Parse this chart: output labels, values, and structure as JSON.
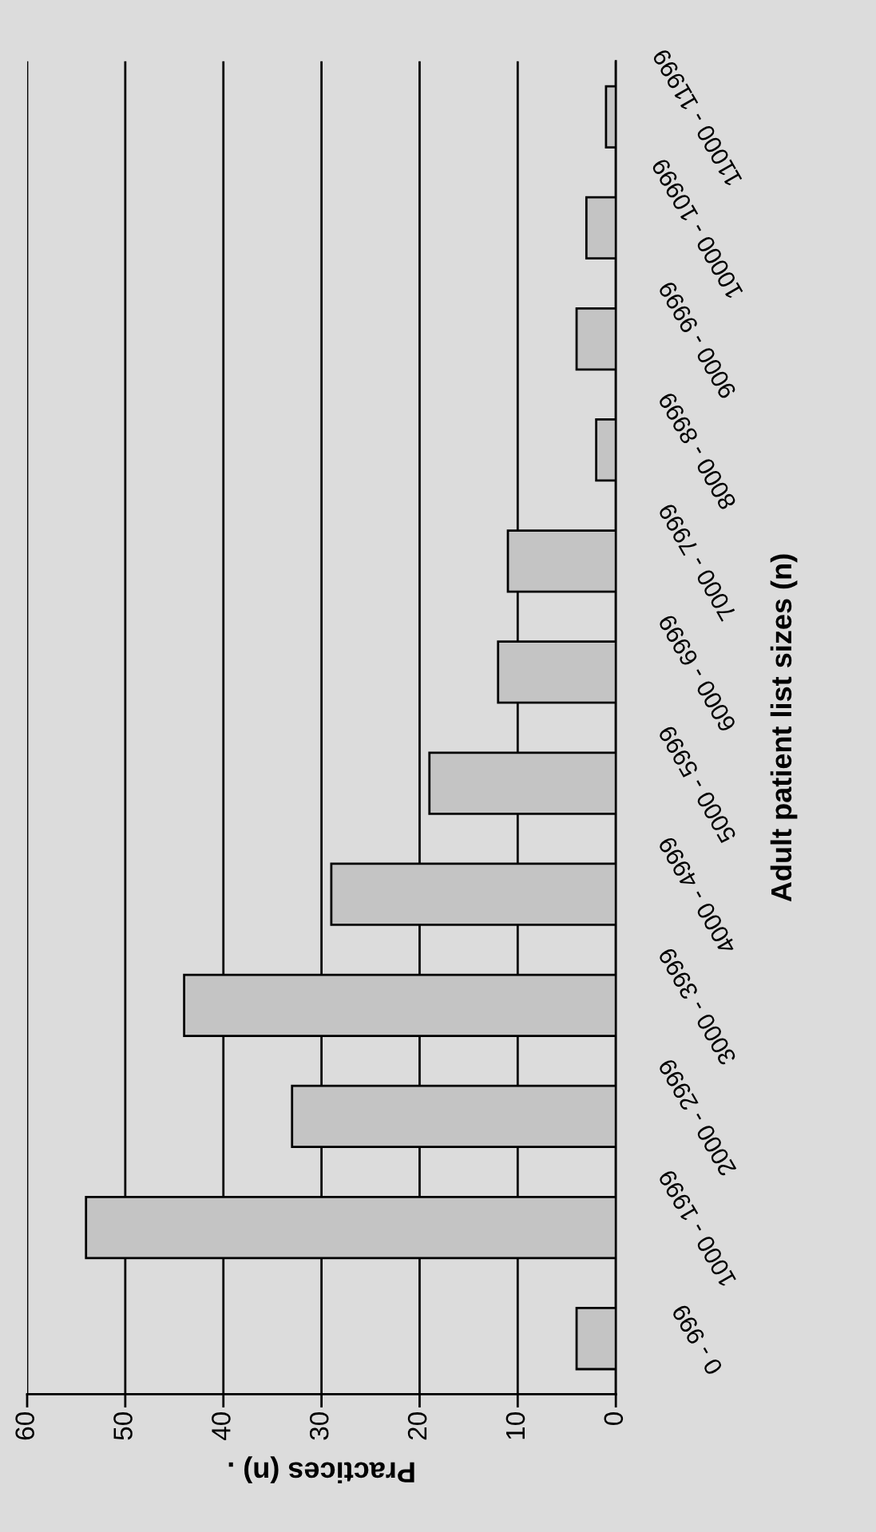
{
  "chart_data": {
    "type": "bar",
    "orientation": "horizontal",
    "xlabel": "Practices (n) .",
    "ylabel": "Adult patient list sizes (n)",
    "categories": [
      "11000 - 11999",
      "10000 - 10999",
      "9000 - 9999",
      "8000 - 8999",
      "7000 - 7999",
      "6000 - 6999",
      "5000 - 5999",
      "4000 - 4999",
      "3000 - 3999",
      "2000 - 2999",
      "1000 - 1999",
      "0 - 999"
    ],
    "values": [
      1,
      3,
      4,
      2,
      11,
      12,
      19,
      29,
      44,
      33,
      54,
      4
    ],
    "color": "#c4c4c4",
    "xlim": [
      60,
      0
    ],
    "xticks": [
      0,
      10,
      20,
      30,
      40,
      50,
      60
    ],
    "grid": "x",
    "legend": false
  }
}
